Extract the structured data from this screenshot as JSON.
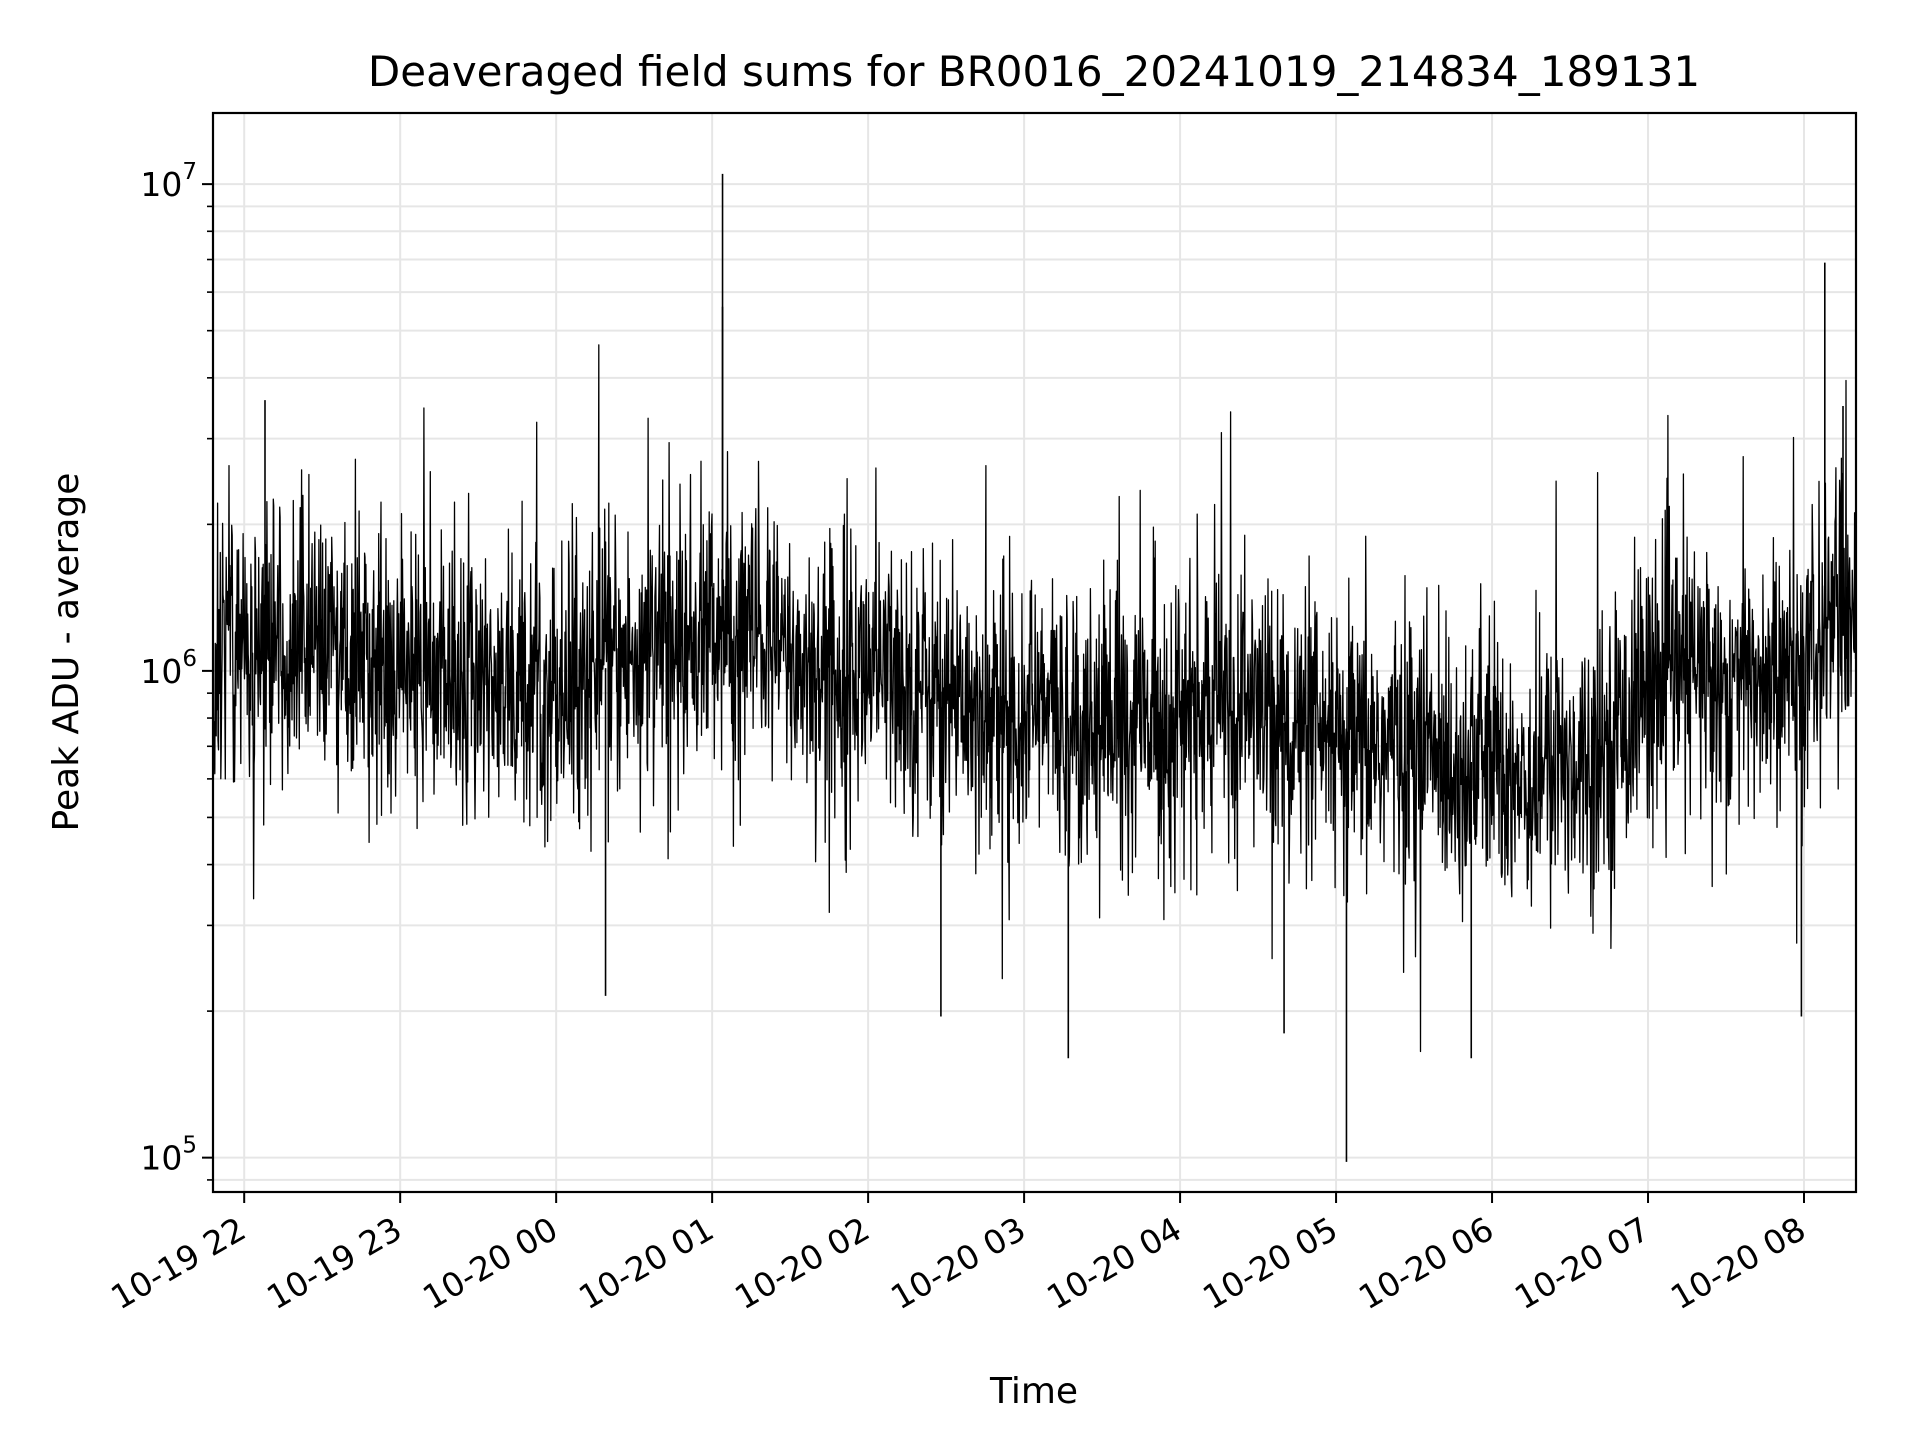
{
  "chart_data": {
    "type": "line",
    "title": "Deaveraged field sums for BR0016_20241019_214834_189131",
    "xlabel": "Time",
    "ylabel": "Peak ADU - average",
    "yscale": "log",
    "ylim": [
      85000,
      14000000
    ],
    "xlim": [
      "2024-10-19 21:48",
      "2024-10-20 08:20"
    ],
    "grid": true,
    "line_color": "#000000",
    "y_ticks": [
      {
        "value": 100000,
        "base": "10",
        "exp": "5"
      },
      {
        "value": 1000000,
        "base": "10",
        "exp": "6"
      },
      {
        "value": 10000000,
        "base": "10",
        "exp": "7"
      }
    ],
    "x_ticks": [
      {
        "value": "2024-10-19 22:00",
        "label": "10-19 22"
      },
      {
        "value": "2024-10-19 23:00",
        "label": "10-19 23"
      },
      {
        "value": "2024-10-20 00:00",
        "label": "10-20 00"
      },
      {
        "value": "2024-10-20 01:00",
        "label": "10-20 01"
      },
      {
        "value": "2024-10-20 02:00",
        "label": "10-20 02"
      },
      {
        "value": "2024-10-20 03:00",
        "label": "10-20 03"
      },
      {
        "value": "2024-10-20 04:00",
        "label": "10-20 04"
      },
      {
        "value": "2024-10-20 05:00",
        "label": "10-20 05"
      },
      {
        "value": "2024-10-20 06:00",
        "label": "10-20 06"
      },
      {
        "value": "2024-10-20 07:00",
        "label": "10-20 07"
      },
      {
        "value": "2024-10-20 08:00",
        "label": "10-20 08"
      }
    ],
    "series": [
      {
        "x": [
          "2024-10-19 21:48",
          "2024-10-19 21:55",
          "2024-10-19 22:05",
          "2024-10-19 22:15",
          "2024-10-19 22:22",
          "2024-10-19 22:30",
          "2024-10-19 22:45",
          "2024-10-19 23:00",
          "2024-10-19 23:15",
          "2024-10-19 23:30",
          "2024-10-19 23:45",
          "2024-10-20 00:00",
          "2024-10-20 00:15",
          "2024-10-20 00:30",
          "2024-10-20 00:45",
          "2024-10-20 01:00",
          "2024-10-20 01:05",
          "2024-10-20 01:15",
          "2024-10-20 01:30",
          "2024-10-20 01:45",
          "2024-10-20 02:00",
          "2024-10-20 02:15",
          "2024-10-20 02:30",
          "2024-10-20 02:45",
          "2024-10-20 03:00",
          "2024-10-20 03:15",
          "2024-10-20 03:30",
          "2024-10-20 03:45",
          "2024-10-20 04:00",
          "2024-10-20 04:15",
          "2024-10-20 04:30",
          "2024-10-20 04:45",
          "2024-10-20 05:00",
          "2024-10-20 05:15",
          "2024-10-20 05:30",
          "2024-10-20 05:45",
          "2024-10-20 06:00",
          "2024-10-20 06:15",
          "2024-10-20 06:30",
          "2024-10-20 06:45",
          "2024-10-20 07:00",
          "2024-10-20 07:15",
          "2024-10-20 07:30",
          "2024-10-20 07:45",
          "2024-10-20 08:00",
          "2024-10-20 08:10",
          "2024-10-20 08:20"
        ],
        "y": [
          1000000,
          1150000,
          1100000,
          1200000,
          1150000,
          1100000,
          1100000,
          1050000,
          1000000,
          950000,
          950000,
          950000,
          1000000,
          1050000,
          1100000,
          1250000,
          1200000,
          1150000,
          1050000,
          1000000,
          1000000,
          950000,
          900000,
          850000,
          850000,
          800000,
          800000,
          800000,
          800000,
          850000,
          850000,
          750000,
          650000,
          700000,
          700000,
          650000,
          650000,
          600000,
          650000,
          700000,
          950000,
          1000000,
          950000,
          950000,
          950000,
          1300000,
          1400000
        ]
      }
    ]
  }
}
